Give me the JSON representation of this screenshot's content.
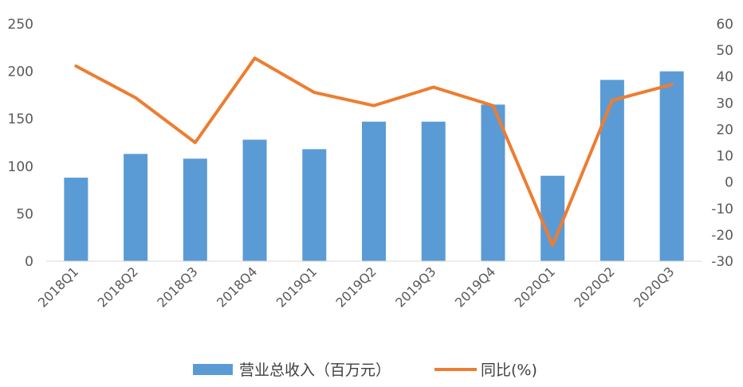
{
  "chart_data": {
    "type": "bar",
    "categories": [
      "2018Q1",
      "2018Q2",
      "2018Q3",
      "2018Q4",
      "2019Q1",
      "2019Q2",
      "2019Q3",
      "2019Q4",
      "2020Q1",
      "2020Q2",
      "2020Q3"
    ],
    "series": [
      {
        "name": "营业总收入（百万元）",
        "type": "bar",
        "axis": "left",
        "color": "#5B9BD5",
        "values": [
          88,
          113,
          108,
          128,
          118,
          147,
          147,
          165,
          90,
          191,
          200
        ]
      },
      {
        "name": "同比(%)",
        "type": "line",
        "axis": "right",
        "color": "#ED7D31",
        "values": [
          44,
          32,
          15,
          47,
          34,
          29,
          36,
          29,
          -24,
          31,
          37
        ]
      }
    ],
    "y_left": {
      "min": 0,
      "max": 250,
      "step": 50,
      "ticks": [
        "0",
        "50",
        "100",
        "150",
        "200",
        "250"
      ]
    },
    "y_right": {
      "min": -30,
      "max": 60,
      "step": 10,
      "ticks": [
        "-30",
        "-20",
        "-10",
        "0",
        "10",
        "20",
        "30",
        "40",
        "50",
        "60"
      ]
    },
    "legend_position": "bottom-center",
    "grid": false
  }
}
